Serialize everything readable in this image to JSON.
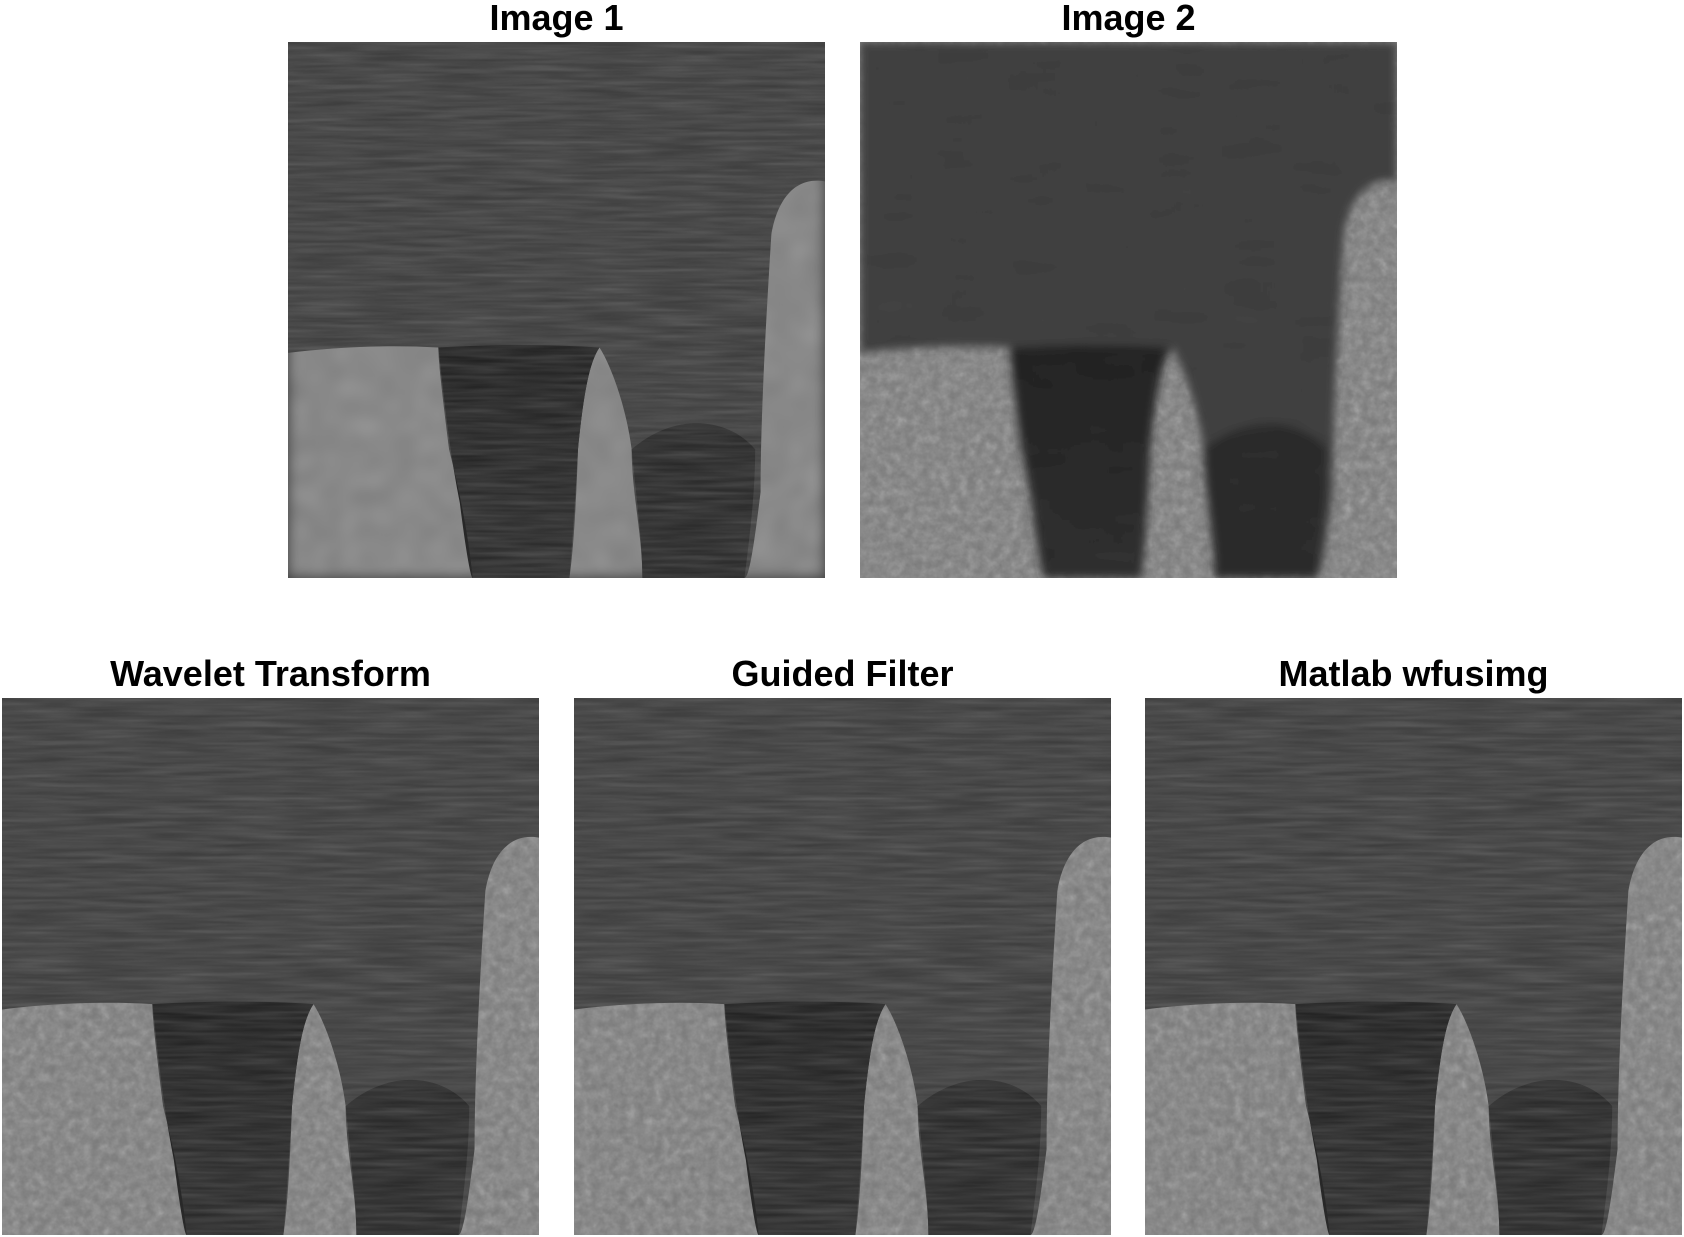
{
  "figure": {
    "panels": [
      {
        "id": "image-1",
        "title": "Image 1",
        "variant": "sharp-foreground"
      },
      {
        "id": "image-2",
        "title": "Image 2",
        "variant": "sharp-background"
      },
      {
        "id": "wavelet-transform",
        "title": "Wavelet Transform",
        "variant": "fused"
      },
      {
        "id": "guided-filter",
        "title": "Guided Filter",
        "variant": "fused"
      },
      {
        "id": "matlab-wfusimg",
        "title": "Matlab wfusimg",
        "variant": "fused"
      }
    ]
  }
}
